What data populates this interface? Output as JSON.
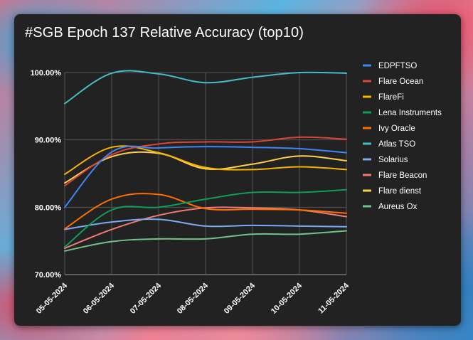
{
  "title": "#SGB Epoch 137 Relative Accuracy (top10)",
  "chart_data": {
    "type": "line",
    "title": "#SGB Epoch 137 Relative Accuracy (top10)",
    "categories": [
      "05-05-2024",
      "06-05-2024",
      "07-05-2024",
      "08-05-2024",
      "09-05-2024",
      "10-05-2024",
      "11-05-2024"
    ],
    "ylim": [
      70,
      100
    ],
    "yticks": [
      70,
      80,
      90,
      100
    ],
    "ytick_labels": [
      "70.00%",
      "80.00%",
      "90.00%",
      "100.00%"
    ],
    "legend_position": "right",
    "grid": true,
    "series": [
      {
        "name": "EDPFTSO",
        "color": "#4285f4",
        "values": [
          80.0,
          88.2,
          88.8,
          89.0,
          88.9,
          88.7,
          88.1
        ]
      },
      {
        "name": "Flare Ocean",
        "color": "#db4437",
        "values": [
          83.2,
          87.8,
          89.4,
          89.7,
          89.7,
          90.4,
          90.1
        ]
      },
      {
        "name": "FlareFi",
        "color": "#f4b400",
        "values": [
          84.9,
          88.9,
          88.1,
          85.9,
          85.6,
          86.0,
          85.6
        ]
      },
      {
        "name": "Lena Instruments",
        "color": "#0f9d58",
        "values": [
          74.1,
          79.6,
          80.0,
          81.2,
          82.2,
          82.2,
          82.6
        ]
      },
      {
        "name": "Ivy Oracle",
        "color": "#ff6d01",
        "values": [
          76.8,
          81.2,
          81.9,
          79.8,
          79.7,
          79.6,
          79.1
        ]
      },
      {
        "name": "Atlas TSO",
        "color": "#46bdc6",
        "values": [
          95.4,
          99.9,
          99.8,
          98.5,
          99.3,
          100.0,
          99.9
        ]
      },
      {
        "name": "Solarius",
        "color": "#7baaf7",
        "values": [
          76.7,
          77.8,
          78.2,
          77.2,
          77.3,
          77.2,
          77.1
        ]
      },
      {
        "name": "Flare Beacon",
        "color": "#f07b72",
        "values": [
          73.9,
          76.7,
          78.8,
          79.9,
          79.9,
          79.6,
          78.6
        ]
      },
      {
        "name": "Flare dienst",
        "color": "#fcd04f",
        "values": [
          83.6,
          87.5,
          88.0,
          85.7,
          86.4,
          87.6,
          86.9
        ]
      },
      {
        "name": "Aureus Ox",
        "color": "#71c287",
        "values": [
          73.5,
          74.9,
          75.3,
          75.3,
          76.0,
          76.0,
          76.5
        ]
      }
    ]
  }
}
